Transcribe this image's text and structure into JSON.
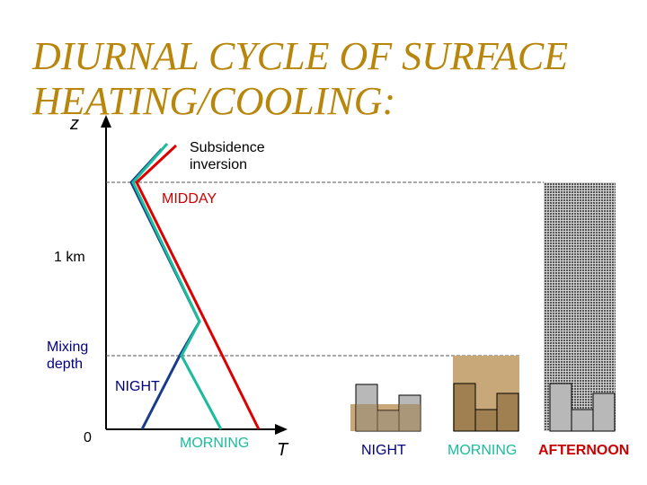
{
  "title": "DIURNAL CYCLE OF SURFACE\nHEATING/COOLING:",
  "axes": {
    "y_label": "z",
    "x_label": "T",
    "tick_1km": "1 km",
    "tick_0": "0"
  },
  "labels": {
    "subsidence_inversion": "Subsidence\ninversion",
    "midday": "MIDDAY",
    "mixing_depth": "Mixing\ndepth",
    "night": "NIGHT",
    "morning": "MORNING"
  },
  "panels": {
    "night": "NIGHT",
    "morning": "MORNING",
    "afternoon": "AFTERNOON"
  },
  "colors": {
    "title": "#b8860b",
    "midday_profile": "#dd0000",
    "morning_profile": "#1abc9c",
    "night_profile": "#1a3a8c",
    "mixed_layer": "#c8a878",
    "building_gray": "#b8b8b8",
    "building_tan": "#a08050",
    "afternoon_fill": "#888888",
    "label_red": "#cc0000",
    "label_navy": "#000080"
  }
}
